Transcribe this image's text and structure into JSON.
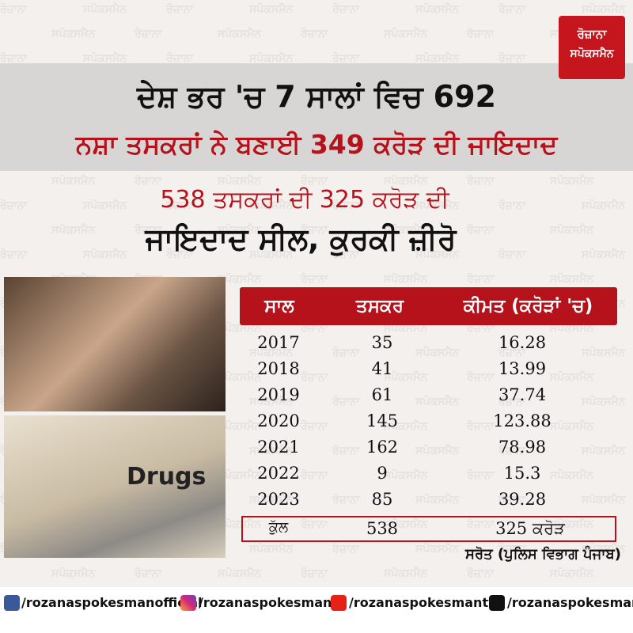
{
  "logo": {
    "line1": "ਰੋਜ਼ਾਨਾ",
    "line2": "ਸਪੋਕਸਮੈਨ"
  },
  "headline": {
    "line1": "ਦੇਸ਼ ਭਰ 'ਚ 7 ਸਾਲਾਂ ਵਿਚ 692",
    "line2": "ਨਸ਼ਾ ਤਸਕਰਾਂ ਨੇ ਬਣਾਈ 349 ਕਰੋੜ ਦੀ ਜਾਇਦਾਦ"
  },
  "subheadline": {
    "line1": "538 ਤਸਕਰਾਂ ਦੀ 325 ਕਰੋੜ ਦੀ",
    "line2": "ਜਾਇਦਾਦ ਸੀਲ, ਕੁਰਕੀ ਜ਼ੀਰੋ"
  },
  "photo_text": "Drugs",
  "table": {
    "header": [
      "ਸਾਲ",
      "ਤਸਕਰ",
      "ਕੀਮਤ (ਕਰੋੜਾਂ 'ਚ)"
    ],
    "rows": [
      [
        "2017",
        "35",
        "16.28"
      ],
      [
        "2018",
        "41",
        "13.99"
      ],
      [
        "2019",
        "61",
        "37.74"
      ],
      [
        "2020",
        "145",
        "123.88"
      ],
      [
        "2021",
        "162",
        "78.98"
      ],
      [
        "2022",
        "9",
        "15.3"
      ],
      [
        "2023",
        "85",
        "39.28"
      ]
    ],
    "total": [
      "ਕੁੱਲ",
      "538",
      "325 ਕਰੋੜ"
    ]
  },
  "source": "ਸਰੋਤ (ਪੁਲਿਸ ਵਿਭਾਗ ਪੰਜਾਬ)",
  "footer": [
    "/rozanaspokesmanofficial",
    "/rozanaspokesman",
    "/rozanaspokesmantv",
    "/rozanaspokesman"
  ]
}
